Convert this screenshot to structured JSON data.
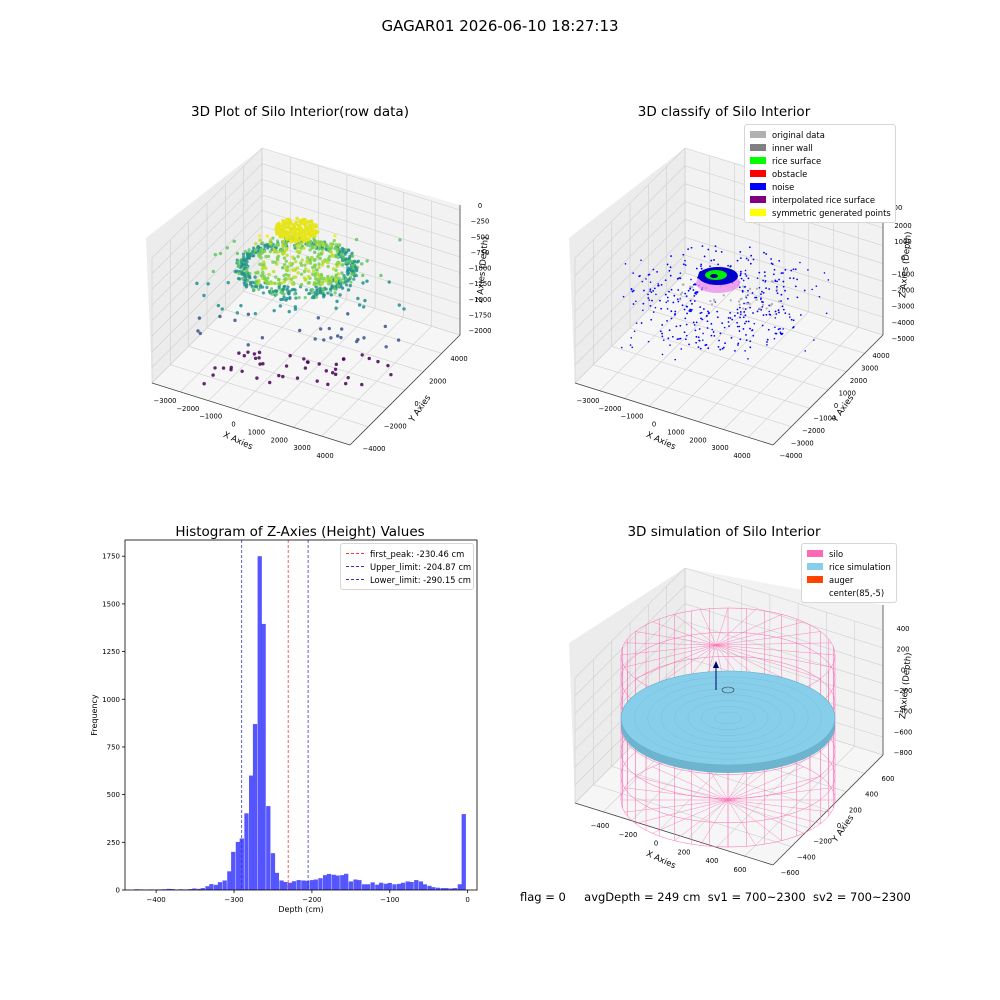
{
  "suptitle": "GAGAR01 2026-06-10 18:27:13",
  "footer": {
    "flag": "flag = 0",
    "avg_depth": "avgDepth = 249 cm",
    "sv1": "sv1 = 700~2300",
    "sv2": "sv2 = 700~2300"
  },
  "colors": {
    "hist_bar": "#4d4dff",
    "first_peak": "#ff3333",
    "limits": "#3333cc",
    "silo": "#ff69b4",
    "rice": "#87ceeb",
    "auger": "#ff4500"
  },
  "chart_data": [
    {
      "type": "scatter3d",
      "title": "3D Plot of Silo Interior(row data)",
      "xlabel": "X Axies",
      "ylabel": "Y Axies",
      "zlabel": "Z Axies (Depth)",
      "x_ticks": [
        "−3000",
        "−2000",
        "−1000",
        "0",
        "1000",
        "2000",
        "3000",
        "4000"
      ],
      "y_ticks": [
        "−4000",
        "−2000",
        "0",
        "2000",
        "4000"
      ],
      "z_ticks": [
        "0",
        "−250",
        "−500",
        "−750",
        "−1000",
        "−1250",
        "−1500",
        "−1750",
        "−2000"
      ],
      "colormap": "viridis (by depth)"
    },
    {
      "type": "scatter3d",
      "title": "3D classify of Silo Interior",
      "xlabel": "X Axies",
      "ylabel": "Y Axies",
      "zlabel": "Z Axies (Depth)",
      "x_ticks": [
        "−3000",
        "−2000",
        "−1000",
        "0",
        "1000",
        "2000",
        "3000",
        "4000"
      ],
      "y_ticks": [
        "−4000",
        "−3000",
        "−2000",
        "−1000",
        "0",
        "1000",
        "2000",
        "3000",
        "4000"
      ],
      "z_ticks": [
        "2000",
        "1000",
        "0",
        "−1000",
        "−2000",
        "−3000",
        "−4000",
        "−5000"
      ],
      "z_top_partial": "00",
      "legend": [
        {
          "label": "original data",
          "color": "#b0b0b0"
        },
        {
          "label": "inner wall",
          "color": "#808080"
        },
        {
          "label": "rice surface",
          "color": "#00ff00"
        },
        {
          "label": "obstacle",
          "color": "#ff0000"
        },
        {
          "label": "noise",
          "color": "#0000ff"
        },
        {
          "label": "interpolated rice surface",
          "color": "#800080"
        },
        {
          "label": "symmetric generated points",
          "color": "#ffff00"
        }
      ]
    },
    {
      "type": "bar",
      "title": "Histogram of Z-Axies (Height) Values",
      "xlabel": "Depth (cm)",
      "ylabel": "Frequency",
      "xlim": [
        -440,
        12
      ],
      "ylim": [
        0,
        1835
      ],
      "x_ticks": [
        -400,
        -300,
        -200,
        -100,
        0
      ],
      "y_ticks": [
        0,
        250,
        500,
        750,
        1000,
        1250,
        1500,
        1750
      ],
      "bin_width": 5.5,
      "bins": [
        {
          "x": -425,
          "count": 4
        },
        {
          "x": -419,
          "count": 3
        },
        {
          "x": -413,
          "count": 2
        },
        {
          "x": -407,
          "count": 3
        },
        {
          "x": -401,
          "count": 2
        },
        {
          "x": -396,
          "count": 3
        },
        {
          "x": -390,
          "count": 4
        },
        {
          "x": -384,
          "count": 6
        },
        {
          "x": -379,
          "count": 5
        },
        {
          "x": -373,
          "count": 2
        },
        {
          "x": -368,
          "count": 4
        },
        {
          "x": -362,
          "count": 3
        },
        {
          "x": -356,
          "count": 5
        },
        {
          "x": -351,
          "count": 8
        },
        {
          "x": -345,
          "count": 6
        },
        {
          "x": -340,
          "count": 10
        },
        {
          "x": -334,
          "count": 20
        },
        {
          "x": -329,
          "count": 31
        },
        {
          "x": -323,
          "count": 27
        },
        {
          "x": -318,
          "count": 41
        },
        {
          "x": -312,
          "count": 50
        },
        {
          "x": -306,
          "count": 98
        },
        {
          "x": -301,
          "count": 200
        },
        {
          "x": -295,
          "count": 252
        },
        {
          "x": -290,
          "count": 270
        },
        {
          "x": -284,
          "count": 402
        },
        {
          "x": -278,
          "count": 600
        },
        {
          "x": -273,
          "count": 870
        },
        {
          "x": -267,
          "count": 1750
        },
        {
          "x": -262,
          "count": 1395
        },
        {
          "x": -256,
          "count": 440
        },
        {
          "x": -250,
          "count": 193
        },
        {
          "x": -245,
          "count": 90
        },
        {
          "x": -239,
          "count": 50
        },
        {
          "x": -234,
          "count": 42
        },
        {
          "x": -228,
          "count": 38
        },
        {
          "x": -223,
          "count": 46
        },
        {
          "x": -217,
          "count": 52
        },
        {
          "x": -211,
          "count": 50
        },
        {
          "x": -206,
          "count": 48
        },
        {
          "x": -200,
          "count": 52
        },
        {
          "x": -195,
          "count": 55
        },
        {
          "x": -189,
          "count": 62
        },
        {
          "x": -183,
          "count": 78
        },
        {
          "x": -178,
          "count": 84
        },
        {
          "x": -172,
          "count": 80
        },
        {
          "x": -167,
          "count": 76
        },
        {
          "x": -161,
          "count": 78
        },
        {
          "x": -156,
          "count": 85
        },
        {
          "x": -150,
          "count": 45
        },
        {
          "x": -144,
          "count": 55
        },
        {
          "x": -139,
          "count": 52
        },
        {
          "x": -133,
          "count": 30
        },
        {
          "x": -128,
          "count": 30
        },
        {
          "x": -122,
          "count": 40
        },
        {
          "x": -116,
          "count": 28
        },
        {
          "x": -111,
          "count": 38
        },
        {
          "x": -105,
          "count": 33
        },
        {
          "x": -100,
          "count": 37
        },
        {
          "x": -94,
          "count": 30
        },
        {
          "x": -88,
          "count": 32
        },
        {
          "x": -83,
          "count": 38
        },
        {
          "x": -77,
          "count": 45
        },
        {
          "x": -72,
          "count": 42
        },
        {
          "x": -66,
          "count": 52
        },
        {
          "x": -60,
          "count": 45
        },
        {
          "x": -55,
          "count": 30
        },
        {
          "x": -49,
          "count": 22
        },
        {
          "x": -44,
          "count": 15
        },
        {
          "x": -38,
          "count": 12
        },
        {
          "x": -32,
          "count": 10
        },
        {
          "x": -27,
          "count": 10
        },
        {
          "x": -21,
          "count": 8
        },
        {
          "x": -16,
          "count": 10
        },
        {
          "x": -10,
          "count": 30
        },
        {
          "x": -5,
          "count": 398
        }
      ],
      "vlines": [
        {
          "label": "first_peak: -230.46 cm",
          "x": -230.46,
          "color": "#ff3333"
        },
        {
          "label": "Upper_limit: -204.87 cm",
          "x": -204.87,
          "color": "#3333cc"
        },
        {
          "label": "Lower_limit: -290.15 cm",
          "x": -290.15,
          "color": "#3333cc"
        }
      ],
      "legend_position": "top-right"
    },
    {
      "type": "surface3d",
      "title": "3D simulation of Silo Interior",
      "xlabel": "X Axies",
      "ylabel": "Y Axies",
      "zlabel": "Z Axies (Depth)",
      "x_ticks": [
        "−400",
        "−200",
        "0",
        "200",
        "400",
        "600"
      ],
      "y_ticks": [
        "−600",
        "−400",
        "−200",
        "0",
        "200",
        "400",
        "600"
      ],
      "z_ticks": [
        "400",
        "200",
        "0",
        "−200",
        "−400",
        "−600",
        "−800"
      ],
      "legend": [
        {
          "label": "silo",
          "color": "#ff69b4"
        },
        {
          "label": "rice simulation",
          "color": "#87ceeb"
        },
        {
          "label": "auger",
          "color": "#ff4500"
        },
        {
          "label": "center(85,-5)",
          "color": "#ffffff"
        }
      ]
    }
  ]
}
